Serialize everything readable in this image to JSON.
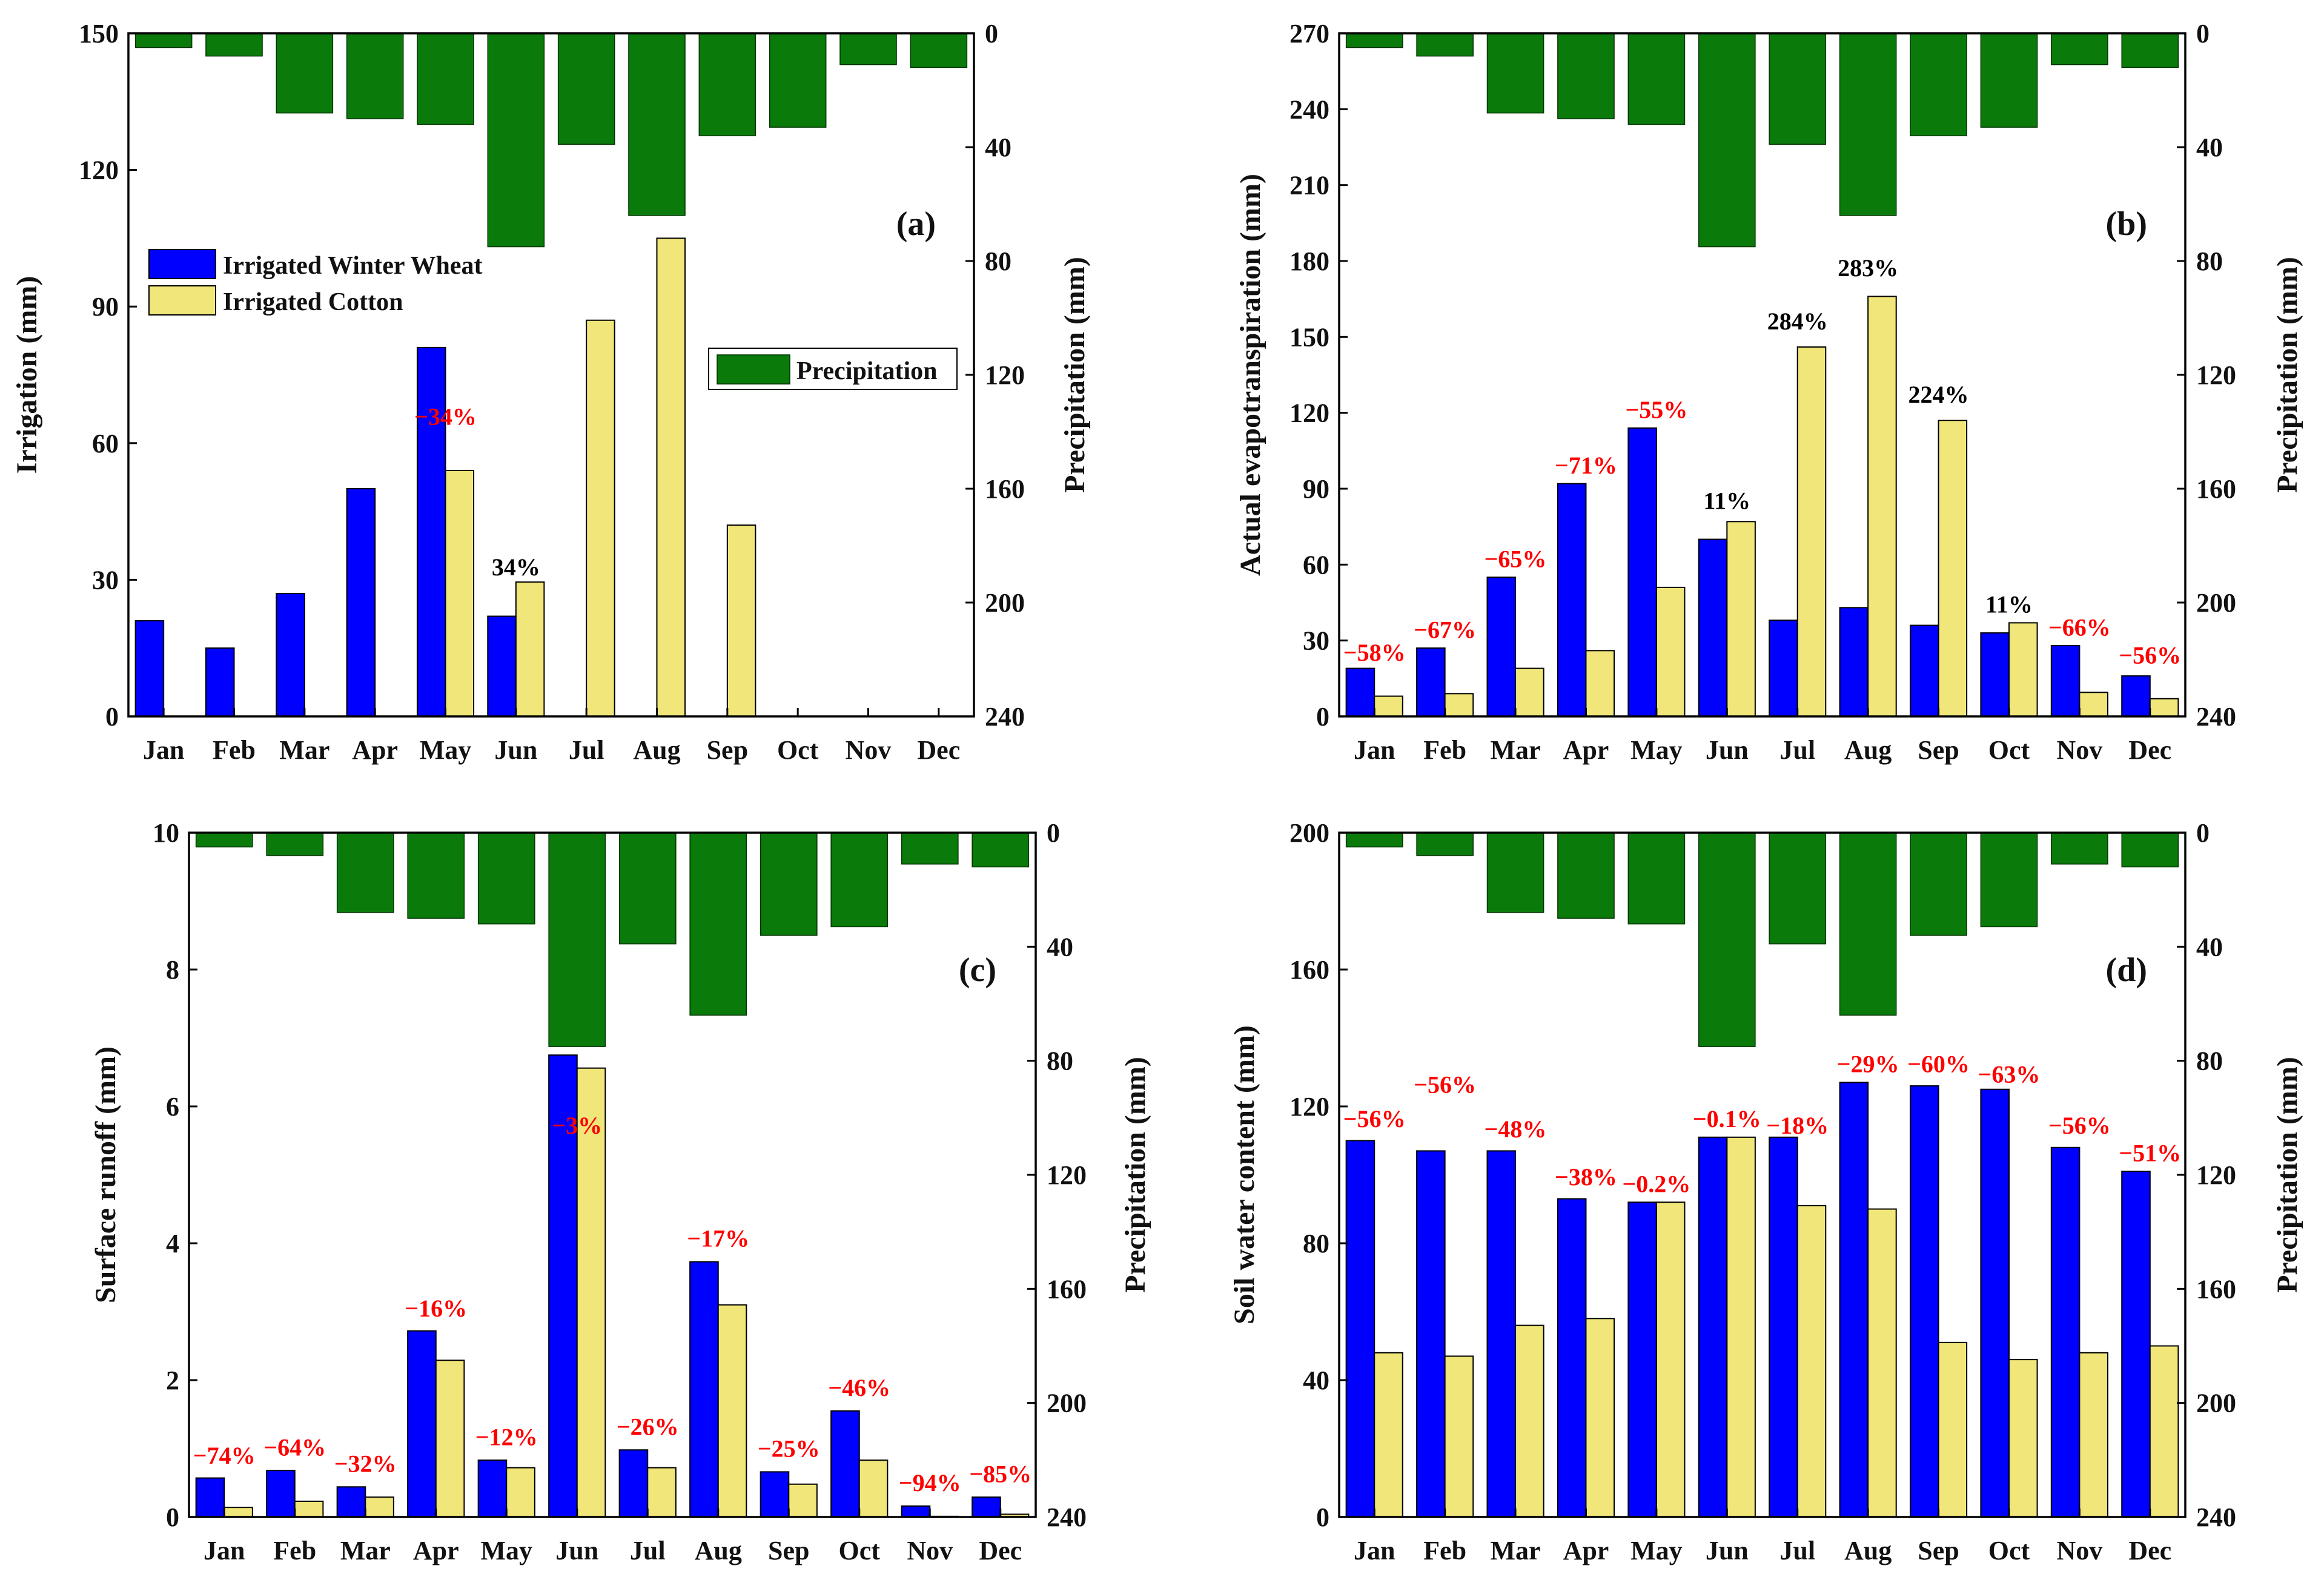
{
  "chart_data": [
    {
      "panel": "(a)",
      "type": "bar",
      "categories": [
        "Jan",
        "Feb",
        "Mar",
        "Apr",
        "May",
        "Jun",
        "Jul",
        "Aug",
        "Sep",
        "Oct",
        "Nov",
        "Dec"
      ],
      "ylabel": "Irrigation (mm)",
      "ylim": [
        0,
        150
      ],
      "yticks": [
        0,
        30,
        60,
        90,
        120,
        150
      ],
      "y2label": "Precipitation (mm)",
      "y2lim": [
        0,
        240
      ],
      "y2ticks": [
        0,
        40,
        80,
        120,
        160,
        200,
        240
      ],
      "series": [
        {
          "name": "Irrigated Winter Wheat",
          "color": "#0000ff",
          "values": [
            21,
            15,
            27,
            50,
            81,
            22,
            0,
            0,
            0,
            0,
            0,
            0
          ]
        },
        {
          "name": "Irrigated Cotton",
          "color": "#f0e67a",
          "values": [
            0,
            0,
            0,
            0,
            54,
            29.5,
            87,
            105,
            42,
            0,
            0,
            0
          ]
        }
      ],
      "precipitation": {
        "name": "Precipitation",
        "color": "#0a7a0a",
        "values": [
          5,
          8,
          28,
          30,
          32,
          75,
          39,
          64,
          36,
          33,
          11,
          12
        ]
      },
      "annotations": [
        {
          "month": "May",
          "text": "−34%",
          "color": "#ff0000",
          "y": 64
        },
        {
          "month": "Jun",
          "text": "34%",
          "color": "#000000",
          "y": 31
        }
      ],
      "legend": {
        "series_position": "upper-left",
        "precipitation_position": "center-right"
      }
    },
    {
      "panel": "(b)",
      "type": "bar",
      "categories": [
        "Jan",
        "Feb",
        "Mar",
        "Apr",
        "May",
        "Jun",
        "Jul",
        "Aug",
        "Sep",
        "Oct",
        "Nov",
        "Dec"
      ],
      "ylabel": "Actual evapotranspiration (mm)",
      "ylim": [
        0,
        270
      ],
      "yticks": [
        0,
        30,
        60,
        90,
        120,
        150,
        180,
        210,
        240,
        270
      ],
      "y2label": "Precipitation (mm)",
      "y2lim": [
        0,
        240
      ],
      "y2ticks": [
        0,
        40,
        80,
        120,
        160,
        200,
        240
      ],
      "series": [
        {
          "name": "Irrigated Winter Wheat",
          "color": "#0000ff",
          "values": [
            19,
            27,
            55,
            92,
            114,
            70,
            38,
            43,
            36,
            33,
            28,
            16
          ]
        },
        {
          "name": "Irrigated Cotton",
          "color": "#f0e67a",
          "values": [
            8,
            9,
            19,
            26,
            51,
            77,
            146,
            166,
            117,
            37,
            9.5,
            7
          ]
        }
      ],
      "precipitation": {
        "name": "Precipitation",
        "color": "#0a7a0a",
        "values": [
          5,
          8,
          28,
          30,
          32,
          75,
          39,
          64,
          36,
          33,
          11,
          12
        ]
      },
      "annotations": [
        {
          "month": "Jan",
          "text": "−58%",
          "color": "#ff0000",
          "y": 22
        },
        {
          "month": "Feb",
          "text": "−67%",
          "color": "#ff0000",
          "y": 31
        },
        {
          "month": "Mar",
          "text": "−65%",
          "color": "#ff0000",
          "y": 59
        },
        {
          "month": "Apr",
          "text": "−71%",
          "color": "#ff0000",
          "y": 96
        },
        {
          "month": "May",
          "text": "−55%",
          "color": "#ff0000",
          "y": 118
        },
        {
          "month": "Jun",
          "text": "11%",
          "color": "#000000",
          "y": 82
        },
        {
          "month": "Jul",
          "text": "284%",
          "color": "#000000",
          "y": 153
        },
        {
          "month": "Aug",
          "text": "283%",
          "color": "#000000",
          "y": 174
        },
        {
          "month": "Sep",
          "text": "224%",
          "color": "#000000",
          "y": 124
        },
        {
          "month": "Oct",
          "text": "11%",
          "color": "#000000",
          "y": 41
        },
        {
          "month": "Nov",
          "text": "−66%",
          "color": "#ff0000",
          "y": 32
        },
        {
          "month": "Dec",
          "text": "−56%",
          "color": "#ff0000",
          "y": 21
        }
      ]
    },
    {
      "panel": "(c)",
      "type": "bar",
      "categories": [
        "Jan",
        "Feb",
        "Mar",
        "Apr",
        "May",
        "Jun",
        "Jul",
        "Aug",
        "Sep",
        "Oct",
        "Nov",
        "Dec"
      ],
      "ylabel": "Surface runoff (mm)",
      "ylim": [
        0,
        10
      ],
      "yticks": [
        0,
        2,
        4,
        6,
        8,
        10
      ],
      "y2label": "Precipitation (mm)",
      "y2lim": [
        0,
        240
      ],
      "y2ticks": [
        0,
        40,
        80,
        120,
        160,
        200,
        240
      ],
      "series": [
        {
          "name": "Irrigated Winter Wheat",
          "color": "#0000ff",
          "values": [
            0.57,
            0.68,
            0.44,
            2.72,
            0.83,
            6.75,
            0.98,
            3.73,
            0.66,
            1.55,
            0.16,
            0.29
          ]
        },
        {
          "name": "Irrigated Cotton",
          "color": "#f0e67a",
          "values": [
            0.14,
            0.23,
            0.29,
            2.29,
            0.72,
            6.56,
            0.72,
            3.1,
            0.48,
            0.83,
            0.01,
            0.04
          ]
        }
      ],
      "precipitation": {
        "name": "Precipitation",
        "color": "#0a7a0a",
        "values": [
          5,
          8,
          28,
          30,
          32,
          75,
          39,
          64,
          36,
          33,
          11,
          12
        ]
      },
      "annotations": [
        {
          "month": "Jan",
          "text": "−74%",
          "color": "#ff0000",
          "y": 0.78
        },
        {
          "month": "Feb",
          "text": "−64%",
          "color": "#ff0000",
          "y": 0.9
        },
        {
          "month": "Mar",
          "text": "−32%",
          "color": "#ff0000",
          "y": 0.66
        },
        {
          "month": "Apr",
          "text": "−16%",
          "color": "#ff0000",
          "y": 2.93
        },
        {
          "month": "May",
          "text": "−12%",
          "color": "#ff0000",
          "y": 1.05
        },
        {
          "month": "Jun",
          "text": "−3%",
          "color": "#ff0000",
          "y": 5.6
        },
        {
          "month": "Jul",
          "text": "−26%",
          "color": "#ff0000",
          "y": 1.2
        },
        {
          "month": "Aug",
          "text": "−17%",
          "color": "#ff0000",
          "y": 3.95
        },
        {
          "month": "Sep",
          "text": "−25%",
          "color": "#ff0000",
          "y": 0.88
        },
        {
          "month": "Oct",
          "text": "−46%",
          "color": "#ff0000",
          "y": 1.77
        },
        {
          "month": "Nov",
          "text": "−94%",
          "color": "#ff0000",
          "y": 0.38
        },
        {
          "month": "Dec",
          "text": "−85%",
          "color": "#ff0000",
          "y": 0.51
        }
      ]
    },
    {
      "panel": "(d)",
      "type": "bar",
      "categories": [
        "Jan",
        "Feb",
        "Mar",
        "Apr",
        "May",
        "Jun",
        "Jul",
        "Aug",
        "Sep",
        "Oct",
        "Nov",
        "Dec"
      ],
      "ylabel": "Soil water content (mm)",
      "ylim": [
        0,
        200
      ],
      "yticks": [
        0,
        40,
        80,
        120,
        160,
        200
      ],
      "y2label": "Precipitation (mm)",
      "y2lim": [
        0,
        240
      ],
      "y2ticks": [
        0,
        40,
        80,
        120,
        160,
        200,
        240
      ],
      "series": [
        {
          "name": "Irrigated Winter Wheat",
          "color": "#0000ff",
          "values": [
            110,
            107,
            107,
            93,
            92,
            111,
            111,
            127,
            126,
            125,
            108,
            101
          ]
        },
        {
          "name": "Irrigated Cotton",
          "color": "#f0e67a",
          "values": [
            48,
            47,
            56,
            58,
            92,
            111,
            91,
            90,
            51,
            46,
            48,
            50
          ]
        }
      ],
      "precipitation": {
        "name": "Precipitation",
        "color": "#0a7a0a",
        "values": [
          5,
          8,
          28,
          30,
          32,
          75,
          39,
          64,
          36,
          33,
          11,
          12
        ]
      },
      "annotations": [
        {
          "month": "Jan",
          "text": "−56%",
          "color": "#ff0000",
          "y": 114
        },
        {
          "month": "Feb",
          "text": "−56%",
          "color": "#ff0000",
          "y": 124
        },
        {
          "month": "Mar",
          "text": "−48%",
          "color": "#ff0000",
          "y": 111
        },
        {
          "month": "Apr",
          "text": "−38%",
          "color": "#ff0000",
          "y": 97
        },
        {
          "month": "May",
          "text": "−0.2%",
          "color": "#ff0000",
          "y": 95
        },
        {
          "month": "Jun",
          "text": "−0.1%",
          "color": "#ff0000",
          "y": 114
        },
        {
          "month": "Jul",
          "text": "−18%",
          "color": "#ff0000",
          "y": 112
        },
        {
          "month": "Aug",
          "text": "−29%",
          "color": "#ff0000",
          "y": 130
        },
        {
          "month": "Sep",
          "text": "−60%",
          "color": "#ff0000",
          "y": 130
        },
        {
          "month": "Oct",
          "text": "−63%",
          "color": "#ff0000",
          "y": 127
        },
        {
          "month": "Nov",
          "text": "−56%",
          "color": "#ff0000",
          "y": 112
        },
        {
          "month": "Dec",
          "text": "−51%",
          "color": "#ff0000",
          "y": 104
        }
      ]
    }
  ]
}
